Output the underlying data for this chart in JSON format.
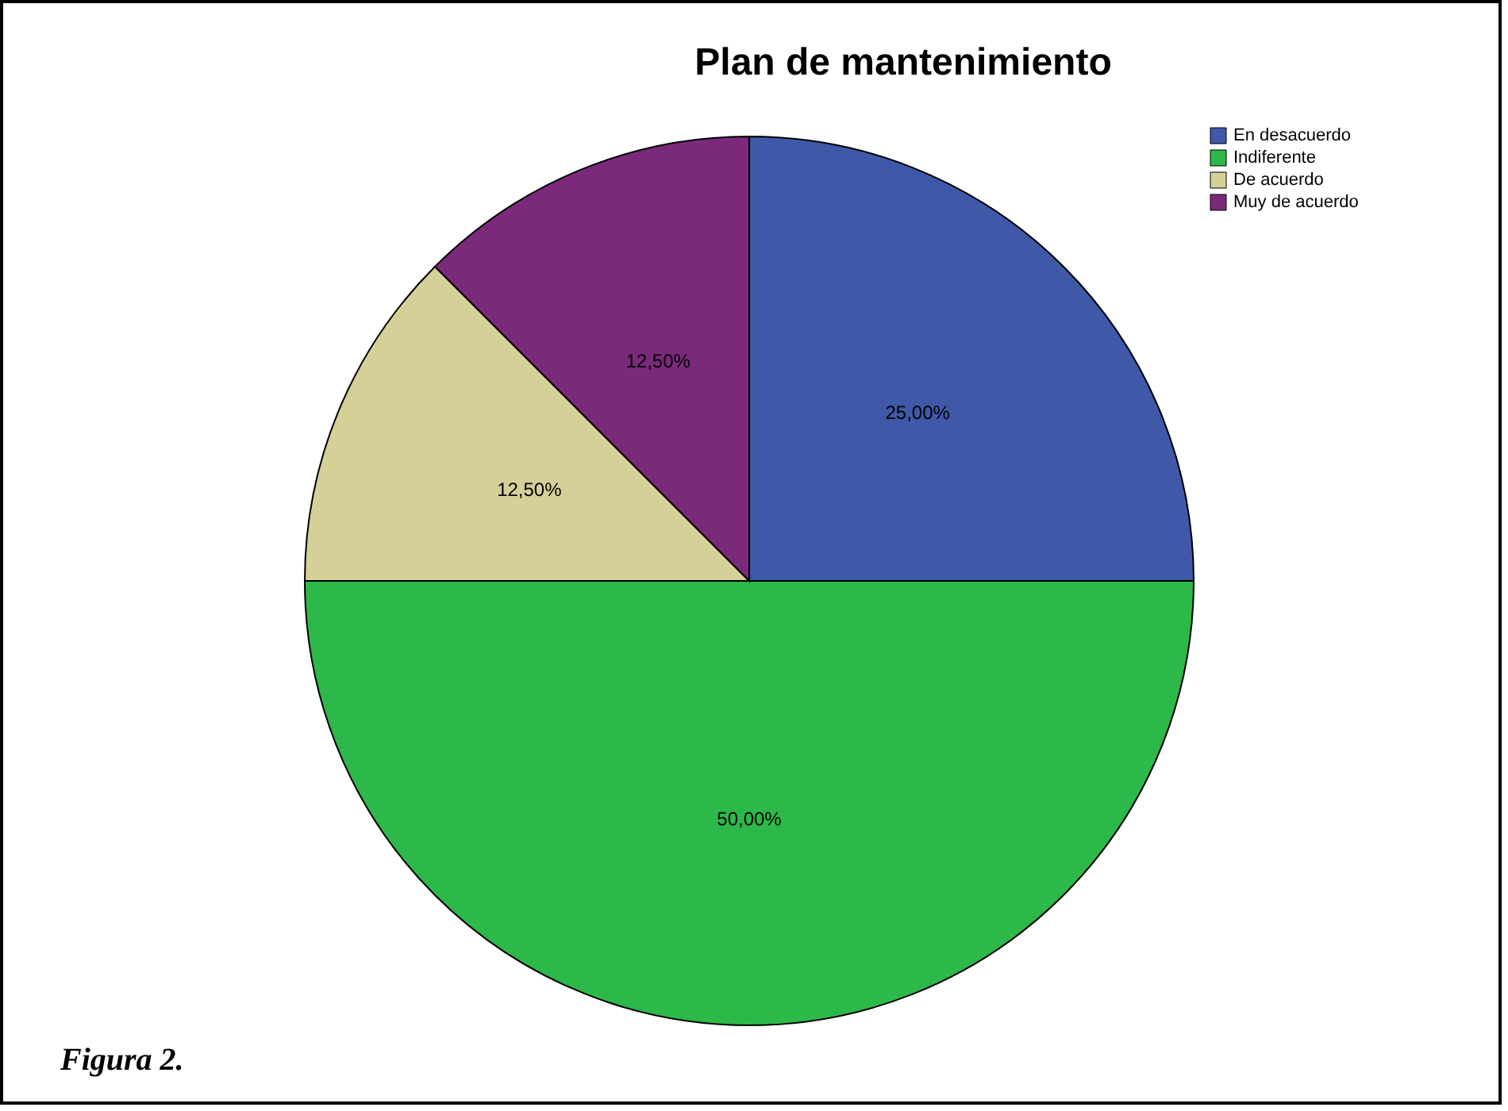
{
  "chart_data": {
    "type": "pie",
    "title": "Plan de mantenimiento",
    "categories": [
      "En desacuerdo",
      "Indiferente",
      "De acuerdo",
      "Muy de acuerdo"
    ],
    "values": [
      25,
      50,
      12.5,
      12.5
    ],
    "colors": [
      "#3f58a8",
      "#2db84a",
      "#d5cf98",
      "#7b2a7b"
    ],
    "value_labels": [
      "25,00%",
      "50,00%",
      "12,50%",
      "12,50%"
    ],
    "legend": "top right",
    "annotations": [
      "Figura 2."
    ]
  }
}
